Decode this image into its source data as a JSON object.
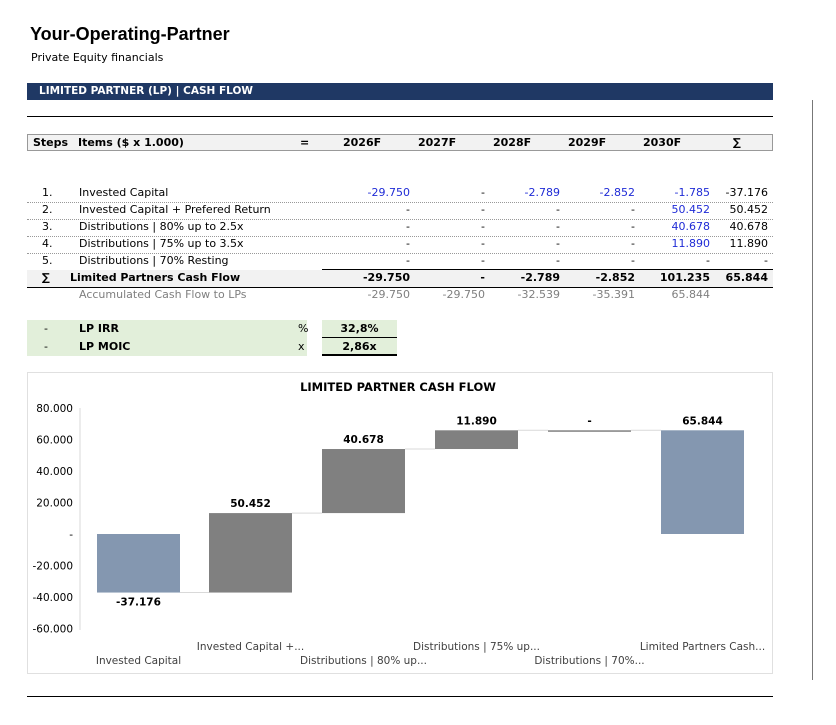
{
  "header": {
    "title": "Your-Operating-Partner",
    "subtitle": "Private Equity financials",
    "banner": "LIMITED PARTNER (LP) | CASH FLOW"
  },
  "table": {
    "columns": {
      "steps": "Steps",
      "items": "Items ($ x 1.000)",
      "eq": "=",
      "y2026": "2026F",
      "y2027": "2027F",
      "y2028": "2028F",
      "y2029": "2029F",
      "y2030": "2030F",
      "sum": "∑"
    },
    "rows": [
      {
        "step": "1.",
        "label": "Invested Capital",
        "v": [
          "-29.750",
          "-",
          "-2.789",
          "-2.852",
          "-1.785"
        ],
        "sum": "-37.176"
      },
      {
        "step": "2.",
        "label": "Invested Capital + Prefered Return",
        "v": [
          "-",
          "-",
          "-",
          "-",
          "50.452"
        ],
        "sum": "50.452"
      },
      {
        "step": "3.",
        "label": "Distributions | 80% up to 2.5x",
        "v": [
          "-",
          "-",
          "-",
          "-",
          "40.678"
        ],
        "sum": "40.678"
      },
      {
        "step": "4.",
        "label": "Distributions | 75% up to 3.5x",
        "v": [
          "-",
          "-",
          "-",
          "-",
          "11.890"
        ],
        "sum": "11.890"
      },
      {
        "step": "5.",
        "label": "Distributions | 70% Resting",
        "v": [
          "-",
          "-",
          "-",
          "-",
          "-"
        ],
        "sum": "-"
      }
    ],
    "total": {
      "step": "∑",
      "label": "Limited Partners Cash Flow",
      "v": [
        "-29.750",
        "-",
        "-2.789",
        "-2.852",
        "101.235"
      ],
      "sum": "65.844"
    },
    "accumulated": {
      "label": "Accumulated Cash Flow to LPs",
      "v": [
        "-29.750",
        "-29.750",
        "-32.539",
        "-35.391",
        "65.844"
      ]
    }
  },
  "kpis": [
    {
      "dash": "-",
      "label": "LP IRR",
      "unit": "%",
      "value": "32,8%"
    },
    {
      "dash": "-",
      "label": "LP MOIC",
      "unit": "x",
      "value": "2,86x"
    }
  ],
  "colors": {
    "banner": "#1f3864",
    "blue_bar": "#8497b0",
    "grey_bar": "#808080",
    "input_blue": "#1f2bd6",
    "kpi_bg": "#e2efda"
  },
  "chart_data": {
    "type": "bar",
    "subtype": "waterfall",
    "title": "LIMITED PARTNER CASH FLOW",
    "categories": [
      "Invested Capital",
      "Invested Capital +...",
      "Distributions | 80% up...",
      "Distributions | 75% up...",
      "Distributions | 70%...",
      "Limited Partners Cash..."
    ],
    "values": [
      -37176,
      50452,
      40678,
      11890,
      0,
      65844
    ],
    "labels": [
      "-37.176",
      "50.452",
      "40.678",
      "11.890",
      "-",
      "65.844"
    ],
    "kinds": [
      "total",
      "delta",
      "delta",
      "delta",
      "delta",
      "total"
    ],
    "y_ticks": [
      "80.000",
      "60.000",
      "40.000",
      "20.000",
      "-",
      "-20.000",
      "-40.000",
      "-60.000"
    ],
    "ylim": [
      -60000,
      80000
    ]
  }
}
